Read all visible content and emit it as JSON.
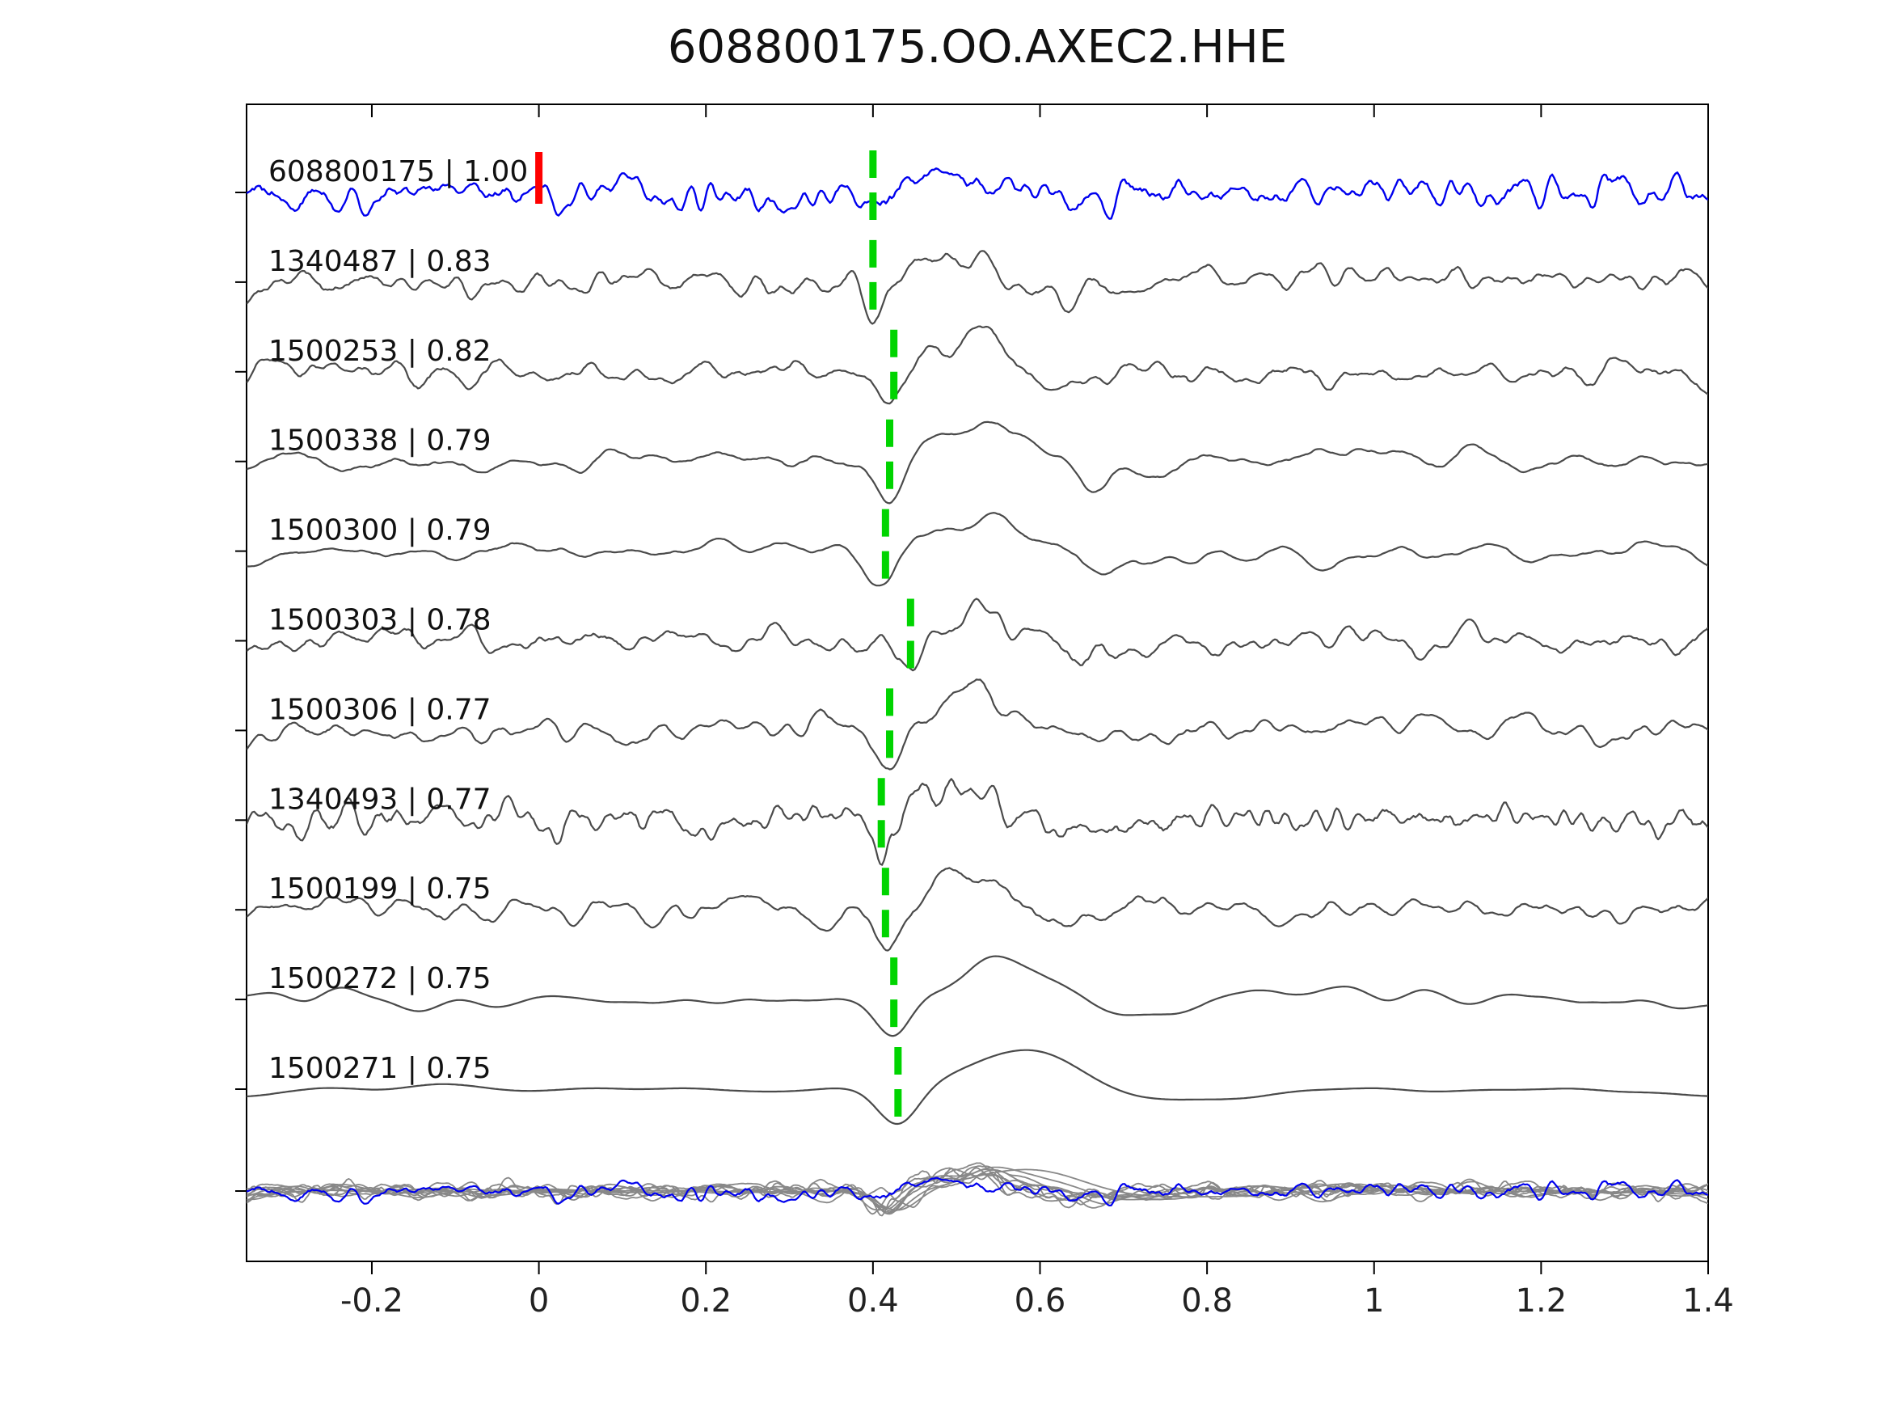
{
  "title": "608800175.OO.AXEC2.HHE",
  "colors": {
    "reference_trace": "#0000ee",
    "match_trace": "#4a4a4a",
    "overlay_trace": "#888888",
    "origin_marker": "#ff0000",
    "pick_marker": "#00d400",
    "axis": "#000000",
    "text": "#111111"
  },
  "axis": {
    "xmin": -0.35,
    "xmax": 1.4,
    "x_tick_values": [
      -0.2,
      0,
      0.2,
      0.4,
      0.6,
      0.8,
      1,
      1.2,
      1.4
    ],
    "x_tick_labels": [
      "-0.2",
      "0",
      "0.2",
      "0.4",
      "0.6",
      "0.8",
      "1",
      "1.2",
      "1.4"
    ]
  },
  "chart_data": {
    "type": "line",
    "title": "608800175.OO.AXEC2.HHE",
    "xlabel": "",
    "ylabel": "",
    "x_range": [
      -0.35,
      1.4
    ],
    "x_ticks": [
      -0.2,
      0,
      0.2,
      0.4,
      0.6,
      0.8,
      1,
      1.2,
      1.4
    ],
    "legend": "none",
    "grid": false,
    "traces": [
      {
        "label": "608800175 | 1.00",
        "id": "608800175",
        "correlation": 1.0,
        "pick_time": 0.4,
        "origin_time": 0.0,
        "is_reference": true,
        "style": {
          "smooth": 5,
          "passes": 2,
          "noise_amp": 30,
          "pulse_amp": 22,
          "pulse_width": 1.0
        }
      },
      {
        "label": "1340487 | 0.83",
        "id": "1340487",
        "correlation": 0.83,
        "pick_time": 0.4,
        "style": {
          "smooth": 7,
          "passes": 2,
          "noise_amp": 27,
          "pulse_amp": 40,
          "pulse_width": 1.0
        }
      },
      {
        "label": "1500253 | 0.82",
        "id": "1500253",
        "correlation": 0.82,
        "pick_time": 0.425,
        "style": {
          "smooth": 7,
          "passes": 2,
          "noise_amp": 28,
          "pulse_amp": 42,
          "pulse_width": 1.1
        }
      },
      {
        "label": "1500338 | 0.79",
        "id": "1500338",
        "correlation": 0.79,
        "pick_time": 0.42,
        "style": {
          "smooth": 13,
          "passes": 2,
          "noise_amp": 24,
          "pulse_amp": 52,
          "pulse_width": 1.3
        }
      },
      {
        "label": "1500300 | 0.79",
        "id": "1500300",
        "correlation": 0.79,
        "pick_time": 0.415,
        "style": {
          "smooth": 13,
          "passes": 2,
          "noise_amp": 24,
          "pulse_amp": 52,
          "pulse_width": 1.3
        }
      },
      {
        "label": "1500303 | 0.78",
        "id": "1500303",
        "correlation": 0.78,
        "pick_time": 0.445,
        "style": {
          "smooth": 7,
          "passes": 2,
          "noise_amp": 28,
          "pulse_amp": 44,
          "pulse_width": 1.0
        }
      },
      {
        "label": "1500306 | 0.77",
        "id": "1500306",
        "correlation": 0.77,
        "pick_time": 0.42,
        "style": {
          "smooth": 9,
          "passes": 2,
          "noise_amp": 26,
          "pulse_amp": 48,
          "pulse_width": 1.1
        }
      },
      {
        "label": "1340493 | 0.77",
        "id": "1340493",
        "correlation": 0.77,
        "pick_time": 0.41,
        "style": {
          "smooth": 5,
          "passes": 2,
          "noise_amp": 30,
          "pulse_amp": 42,
          "pulse_width": 1.0
        }
      },
      {
        "label": "1500199 | 0.75",
        "id": "1500199",
        "correlation": 0.75,
        "pick_time": 0.415,
        "style": {
          "smooth": 9,
          "passes": 2,
          "noise_amp": 26,
          "pulse_amp": 46,
          "pulse_width": 1.1
        }
      },
      {
        "label": "1500272 | 0.75",
        "id": "1500272",
        "correlation": 0.75,
        "pick_time": 0.425,
        "style": {
          "smooth": 17,
          "passes": 3,
          "noise_amp": 16,
          "pulse_amp": 48,
          "pulse_width": 1.4
        }
      },
      {
        "label": "1500271 | 0.75",
        "id": "1500271",
        "correlation": 0.75,
        "pick_time": 0.43,
        "style": {
          "smooth": 27,
          "passes": 3,
          "noise_amp": 9,
          "pulse_amp": 50,
          "pulse_width": 1.7
        }
      }
    ],
    "overlay_row": {
      "description": "all traces superimposed at bottom",
      "scale": 0.55
    }
  }
}
